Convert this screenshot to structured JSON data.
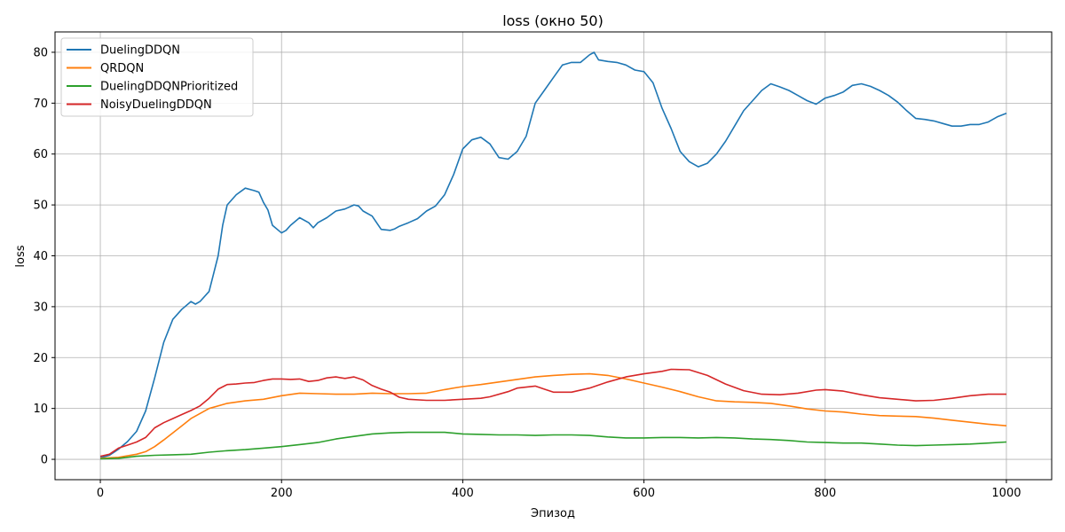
{
  "chart_data": {
    "type": "line",
    "title": "loss (окно 50)",
    "xlabel": "Эпизод",
    "ylabel": "loss",
    "xlim": [
      -50,
      1050
    ],
    "ylim": [
      -4,
      84
    ],
    "xticks": [
      0,
      200,
      400,
      600,
      800,
      1000
    ],
    "yticks": [
      0,
      10,
      20,
      30,
      40,
      50,
      60,
      70,
      80
    ],
    "grid": true,
    "legend_position": "top-left",
    "series": [
      {
        "name": "DuelingDDQN",
        "color": "#1f77b4",
        "points": [
          [
            0,
            0.3
          ],
          [
            10,
            0.8
          ],
          [
            20,
            2
          ],
          [
            30,
            3.5
          ],
          [
            40,
            5.5
          ],
          [
            50,
            9.5
          ],
          [
            60,
            16
          ],
          [
            70,
            23
          ],
          [
            80,
            27.5
          ],
          [
            90,
            29.5
          ],
          [
            100,
            31
          ],
          [
            105,
            30.5
          ],
          [
            110,
            31
          ],
          [
            120,
            33
          ],
          [
            130,
            40
          ],
          [
            135,
            46
          ],
          [
            140,
            50
          ],
          [
            150,
            52
          ],
          [
            160,
            53.3
          ],
          [
            170,
            52.8
          ],
          [
            175,
            52.5
          ],
          [
            180,
            50.5
          ],
          [
            185,
            49
          ],
          [
            190,
            46
          ],
          [
            200,
            44.5
          ],
          [
            205,
            45
          ],
          [
            210,
            46
          ],
          [
            220,
            47.5
          ],
          [
            230,
            46.5
          ],
          [
            235,
            45.5
          ],
          [
            240,
            46.5
          ],
          [
            250,
            47.5
          ],
          [
            260,
            48.8
          ],
          [
            270,
            49.2
          ],
          [
            280,
            50
          ],
          [
            285,
            49.8
          ],
          [
            290,
            48.8
          ],
          [
            300,
            47.8
          ],
          [
            310,
            45.2
          ],
          [
            320,
            45
          ],
          [
            325,
            45.3
          ],
          [
            330,
            45.8
          ],
          [
            340,
            46.5
          ],
          [
            350,
            47.3
          ],
          [
            360,
            48.8
          ],
          [
            370,
            49.8
          ],
          [
            380,
            52
          ],
          [
            390,
            56
          ],
          [
            400,
            61
          ],
          [
            410,
            62.8
          ],
          [
            420,
            63.3
          ],
          [
            430,
            62
          ],
          [
            440,
            59.3
          ],
          [
            450,
            59
          ],
          [
            460,
            60.5
          ],
          [
            470,
            63.5
          ],
          [
            480,
            70
          ],
          [
            490,
            72.5
          ],
          [
            500,
            75
          ],
          [
            510,
            77.5
          ],
          [
            520,
            78
          ],
          [
            530,
            78
          ],
          [
            540,
            79.5
          ],
          [
            545,
            80
          ],
          [
            550,
            78.5
          ],
          [
            560,
            78.2
          ],
          [
            570,
            78
          ],
          [
            580,
            77.5
          ],
          [
            590,
            76.5
          ],
          [
            600,
            76.2
          ],
          [
            610,
            74
          ],
          [
            620,
            69
          ],
          [
            630,
            65
          ],
          [
            640,
            60.5
          ],
          [
            650,
            58.5
          ],
          [
            660,
            57.5
          ],
          [
            670,
            58.2
          ],
          [
            680,
            60
          ],
          [
            690,
            62.5
          ],
          [
            700,
            65.5
          ],
          [
            710,
            68.5
          ],
          [
            720,
            70.5
          ],
          [
            730,
            72.5
          ],
          [
            740,
            73.8
          ],
          [
            750,
            73.2
          ],
          [
            760,
            72.5
          ],
          [
            770,
            71.5
          ],
          [
            780,
            70.5
          ],
          [
            790,
            69.8
          ],
          [
            800,
            71
          ],
          [
            810,
            71.5
          ],
          [
            820,
            72.2
          ],
          [
            830,
            73.5
          ],
          [
            840,
            73.8
          ],
          [
            850,
            73.3
          ],
          [
            860,
            72.5
          ],
          [
            870,
            71.5
          ],
          [
            880,
            70.2
          ],
          [
            890,
            68.5
          ],
          [
            900,
            67
          ],
          [
            910,
            66.8
          ],
          [
            920,
            66.5
          ],
          [
            930,
            66
          ],
          [
            940,
            65.5
          ],
          [
            950,
            65.5
          ],
          [
            960,
            65.8
          ],
          [
            970,
            65.8
          ],
          [
            980,
            66.3
          ],
          [
            990,
            67.3
          ],
          [
            1000,
            68
          ]
        ]
      },
      {
        "name": "QRDQN",
        "color": "#ff7f0e",
        "points": [
          [
            0,
            0.2
          ],
          [
            20,
            0.4
          ],
          [
            40,
            1
          ],
          [
            50,
            1.5
          ],
          [
            60,
            2.5
          ],
          [
            70,
            3.8
          ],
          [
            80,
            5.2
          ],
          [
            90,
            6.6
          ],
          [
            100,
            8
          ],
          [
            120,
            10
          ],
          [
            140,
            11
          ],
          [
            160,
            11.5
          ],
          [
            180,
            11.8
          ],
          [
            200,
            12.5
          ],
          [
            220,
            13
          ],
          [
            240,
            12.9
          ],
          [
            260,
            12.8
          ],
          [
            280,
            12.8
          ],
          [
            300,
            13
          ],
          [
            320,
            12.9
          ],
          [
            340,
            12.9
          ],
          [
            360,
            13
          ],
          [
            380,
            13.7
          ],
          [
            400,
            14.3
          ],
          [
            420,
            14.7
          ],
          [
            440,
            15.2
          ],
          [
            460,
            15.7
          ],
          [
            480,
            16.2
          ],
          [
            500,
            16.5
          ],
          [
            520,
            16.7
          ],
          [
            540,
            16.8
          ],
          [
            560,
            16.5
          ],
          [
            580,
            15.8
          ],
          [
            600,
            15
          ],
          [
            620,
            14.2
          ],
          [
            640,
            13.3
          ],
          [
            660,
            12.3
          ],
          [
            680,
            11.5
          ],
          [
            700,
            11.3
          ],
          [
            720,
            11.2
          ],
          [
            740,
            11
          ],
          [
            760,
            10.5
          ],
          [
            780,
            9.9
          ],
          [
            800,
            9.5
          ],
          [
            820,
            9.3
          ],
          [
            840,
            8.9
          ],
          [
            860,
            8.6
          ],
          [
            880,
            8.5
          ],
          [
            900,
            8.4
          ],
          [
            920,
            8.1
          ],
          [
            940,
            7.7
          ],
          [
            960,
            7.3
          ],
          [
            980,
            6.9
          ],
          [
            1000,
            6.6
          ]
        ]
      },
      {
        "name": "DuelingDDQNPrioritized",
        "color": "#2ca02c",
        "points": [
          [
            0,
            0.1
          ],
          [
            20,
            0.2
          ],
          [
            40,
            0.6
          ],
          [
            60,
            0.8
          ],
          [
            80,
            0.9
          ],
          [
            100,
            1
          ],
          [
            120,
            1.4
          ],
          [
            140,
            1.7
          ],
          [
            160,
            1.9
          ],
          [
            180,
            2.2
          ],
          [
            200,
            2.5
          ],
          [
            220,
            2.9
          ],
          [
            240,
            3.3
          ],
          [
            260,
            4
          ],
          [
            280,
            4.5
          ],
          [
            300,
            5
          ],
          [
            320,
            5.2
          ],
          [
            340,
            5.3
          ],
          [
            360,
            5.3
          ],
          [
            380,
            5.3
          ],
          [
            400,
            5
          ],
          [
            420,
            4.9
          ],
          [
            440,
            4.8
          ],
          [
            460,
            4.8
          ],
          [
            480,
            4.7
          ],
          [
            500,
            4.8
          ],
          [
            520,
            4.8
          ],
          [
            540,
            4.7
          ],
          [
            560,
            4.4
          ],
          [
            580,
            4.2
          ],
          [
            600,
            4.2
          ],
          [
            620,
            4.3
          ],
          [
            640,
            4.3
          ],
          [
            660,
            4.2
          ],
          [
            680,
            4.3
          ],
          [
            700,
            4.2
          ],
          [
            720,
            4
          ],
          [
            740,
            3.9
          ],
          [
            760,
            3.7
          ],
          [
            780,
            3.4
          ],
          [
            800,
            3.3
          ],
          [
            820,
            3.2
          ],
          [
            840,
            3.2
          ],
          [
            860,
            3
          ],
          [
            880,
            2.8
          ],
          [
            900,
            2.7
          ],
          [
            920,
            2.8
          ],
          [
            940,
            2.9
          ],
          [
            960,
            3
          ],
          [
            980,
            3.2
          ],
          [
            1000,
            3.4
          ]
        ]
      },
      {
        "name": "NoisyDuelingDDQN",
        "color": "#d62728",
        "points": [
          [
            0,
            0.6
          ],
          [
            10,
            1
          ],
          [
            20,
            2.2
          ],
          [
            30,
            2.8
          ],
          [
            40,
            3.4
          ],
          [
            50,
            4.3
          ],
          [
            60,
            6.2
          ],
          [
            70,
            7.2
          ],
          [
            80,
            8
          ],
          [
            90,
            8.8
          ],
          [
            100,
            9.6
          ],
          [
            110,
            10.5
          ],
          [
            120,
            12
          ],
          [
            130,
            13.8
          ],
          [
            140,
            14.7
          ],
          [
            150,
            14.8
          ],
          [
            160,
            15
          ],
          [
            170,
            15.1
          ],
          [
            180,
            15.5
          ],
          [
            190,
            15.8
          ],
          [
            200,
            15.8
          ],
          [
            210,
            15.7
          ],
          [
            220,
            15.8
          ],
          [
            230,
            15.3
          ],
          [
            240,
            15.5
          ],
          [
            250,
            16
          ],
          [
            260,
            16.2
          ],
          [
            270,
            15.9
          ],
          [
            280,
            16.2
          ],
          [
            290,
            15.6
          ],
          [
            300,
            14.5
          ],
          [
            310,
            13.8
          ],
          [
            320,
            13.2
          ],
          [
            330,
            12.2
          ],
          [
            340,
            11.8
          ],
          [
            360,
            11.6
          ],
          [
            380,
            11.6
          ],
          [
            400,
            11.8
          ],
          [
            420,
            12
          ],
          [
            430,
            12.3
          ],
          [
            450,
            13.3
          ],
          [
            460,
            14
          ],
          [
            480,
            14.4
          ],
          [
            490,
            13.8
          ],
          [
            500,
            13.2
          ],
          [
            520,
            13.2
          ],
          [
            540,
            14
          ],
          [
            560,
            15.2
          ],
          [
            580,
            16.2
          ],
          [
            600,
            16.8
          ],
          [
            620,
            17.3
          ],
          [
            630,
            17.7
          ],
          [
            650,
            17.6
          ],
          [
            670,
            16.5
          ],
          [
            690,
            14.8
          ],
          [
            710,
            13.5
          ],
          [
            730,
            12.8
          ],
          [
            750,
            12.7
          ],
          [
            770,
            13
          ],
          [
            790,
            13.6
          ],
          [
            800,
            13.7
          ],
          [
            820,
            13.4
          ],
          [
            840,
            12.7
          ],
          [
            860,
            12.1
          ],
          [
            880,
            11.8
          ],
          [
            900,
            11.5
          ],
          [
            920,
            11.6
          ],
          [
            940,
            12
          ],
          [
            960,
            12.5
          ],
          [
            980,
            12.8
          ],
          [
            1000,
            12.8
          ]
        ]
      }
    ]
  }
}
